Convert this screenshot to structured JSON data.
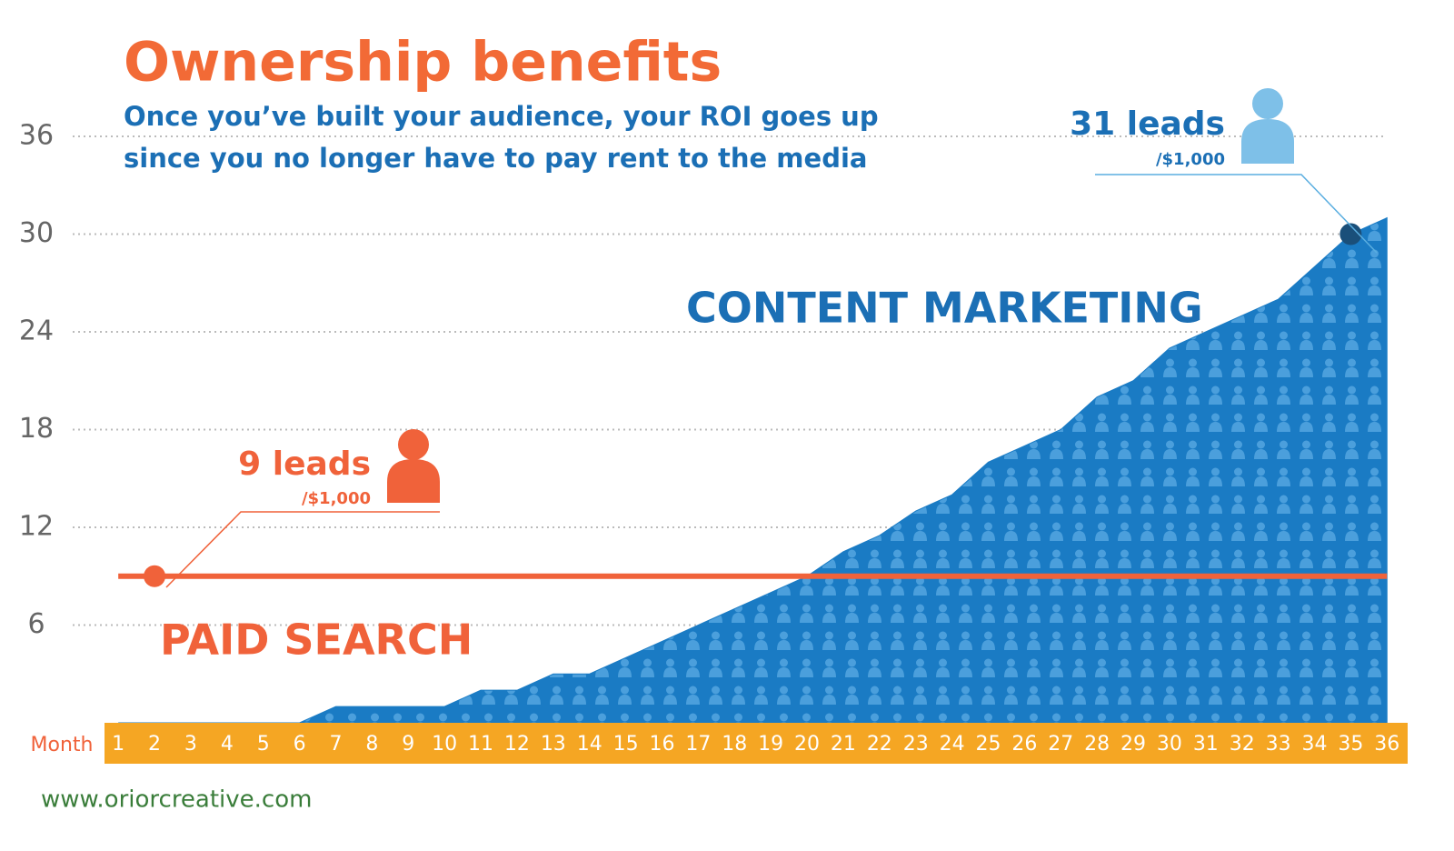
{
  "chart_data": {
    "type": "area",
    "title": "Ownership benefits",
    "subtitle": [
      "Once you’ve built your audience, your ROI goes up",
      "since you no longer have to pay rent to the media"
    ],
    "xlabel": "Month",
    "x": [
      1,
      2,
      3,
      4,
      5,
      6,
      7,
      8,
      9,
      10,
      11,
      12,
      13,
      14,
      15,
      16,
      17,
      18,
      19,
      20,
      21,
      22,
      23,
      24,
      25,
      26,
      27,
      28,
      29,
      30,
      31,
      32,
      33,
      34,
      35,
      36
    ],
    "xlim": [
      0.62,
      36.57
    ],
    "ylim": [
      0,
      36
    ],
    "yticks": [
      6,
      12,
      18,
      24,
      30,
      36
    ],
    "grid": true,
    "series": [
      {
        "name": "CONTENT MARKETING",
        "type": "area",
        "color": "#1a7bc4",
        "values": [
          0,
          0,
          0,
          0,
          0,
          0,
          1,
          1,
          1,
          1,
          2,
          2,
          3,
          3,
          4,
          5,
          6,
          7,
          8,
          9,
          10.5,
          11.5,
          13,
          14,
          16,
          17,
          18,
          20,
          21,
          23,
          24,
          25,
          26,
          28,
          30,
          31
        ]
      },
      {
        "name": "PAID SEARCH",
        "type": "line",
        "color": "#f0623a",
        "values": [
          9,
          9,
          9,
          9,
          9,
          9,
          9,
          9,
          9,
          9,
          9,
          9,
          9,
          9,
          9,
          9,
          9,
          9,
          9,
          9,
          9,
          9,
          9,
          9,
          9,
          9,
          9,
          9,
          9,
          9,
          9,
          9,
          9,
          9,
          9,
          9
        ]
      }
    ],
    "annotations": [
      "9 leads",
      "/$1,000",
      "31 leads",
      "/$1,000"
    ],
    "source": "www.oriorcreative.com"
  }
}
